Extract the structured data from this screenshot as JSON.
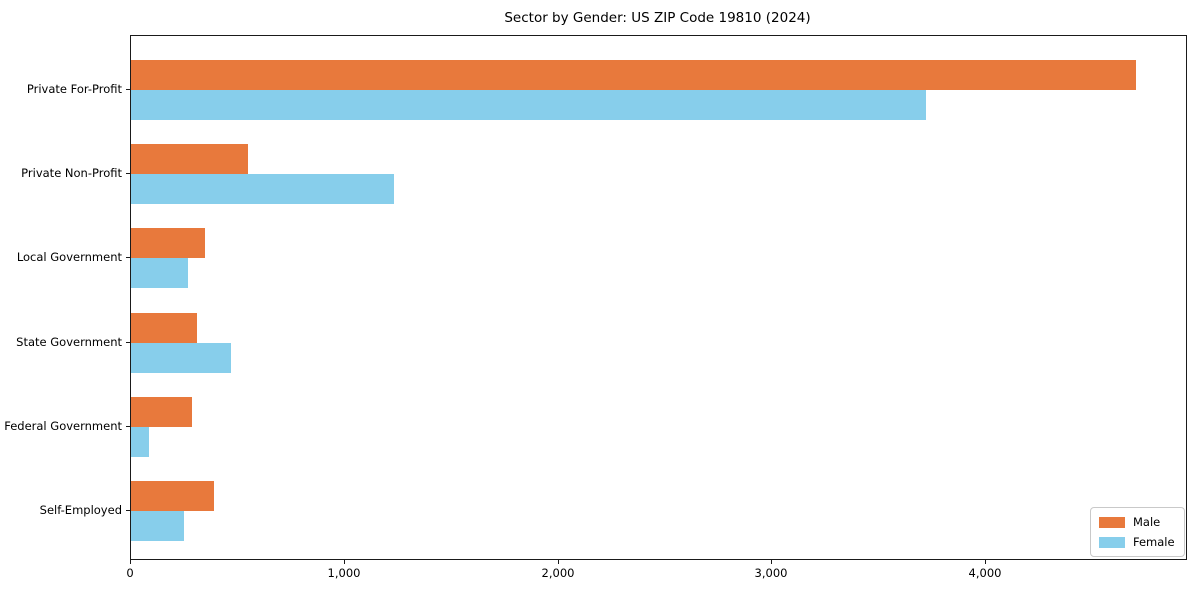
{
  "chart_data": {
    "type": "bar",
    "orientation": "horizontal",
    "title": "Sector by Gender: US ZIP Code 19810 (2024)",
    "categories": [
      "Private For-Profit",
      "Private Non-Profit",
      "Local Government",
      "State Government",
      "Federal Government",
      "Self-Employed"
    ],
    "series": [
      {
        "name": "Male",
        "color": "#e8793c",
        "values": [
          4700,
          545,
          345,
          310,
          285,
          390
        ]
      },
      {
        "name": "Female",
        "color": "#87ceeb",
        "values": [
          3720,
          1230,
          265,
          470,
          85,
          250
        ]
      }
    ],
    "xlabel": "",
    "ylabel": "",
    "xlim": [
      0,
      4934
    ],
    "xticks": {
      "values": [
        0,
        1000,
        2000,
        3000,
        4000
      ],
      "labels": [
        "0",
        "1,000",
        "2,000",
        "3,000",
        "4,000"
      ]
    },
    "grid": false,
    "legend": {
      "position": "lower right"
    },
    "colors": {
      "frame": "#1a1a1a",
      "background": "#ffffff",
      "text": "#000000"
    }
  }
}
